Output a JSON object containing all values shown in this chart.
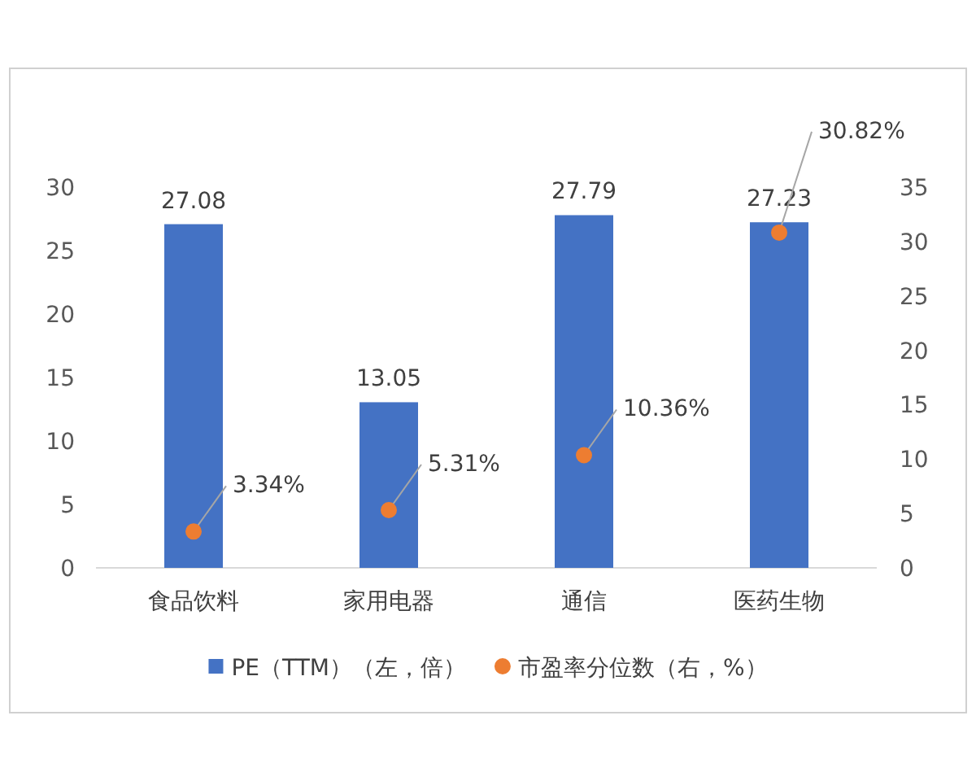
{
  "chart_data": {
    "type": "bar",
    "categories": [
      "食品饮料",
      "家用电器",
      "通信",
      "医药生物"
    ],
    "series": [
      {
        "name": "PE（TTM）（左，倍）",
        "color": "#4472c4",
        "values": [
          27.08,
          13.05,
          27.79,
          27.23
        ],
        "value_labels": [
          "27.08",
          "13.05",
          "27.79",
          "27.23"
        ]
      },
      {
        "name": "市盈率分位数（右，%）",
        "type": "scatter",
        "axis": "y2",
        "marker": "circle",
        "color": "#ed7d31",
        "values": [
          3.34,
          5.31,
          10.36,
          30.82
        ],
        "value_labels": [
          "3.34%",
          "5.31%",
          "10.36%",
          "30.82%"
        ]
      }
    ],
    "ylim": [
      0,
      30
    ],
    "yticks": [
      0,
      5,
      10,
      15,
      20,
      25,
      30
    ],
    "y2lim": [
      0,
      35
    ],
    "y2ticks": [
      0,
      5,
      10,
      15,
      20,
      25,
      30,
      35
    ],
    "legend": "bottom"
  }
}
